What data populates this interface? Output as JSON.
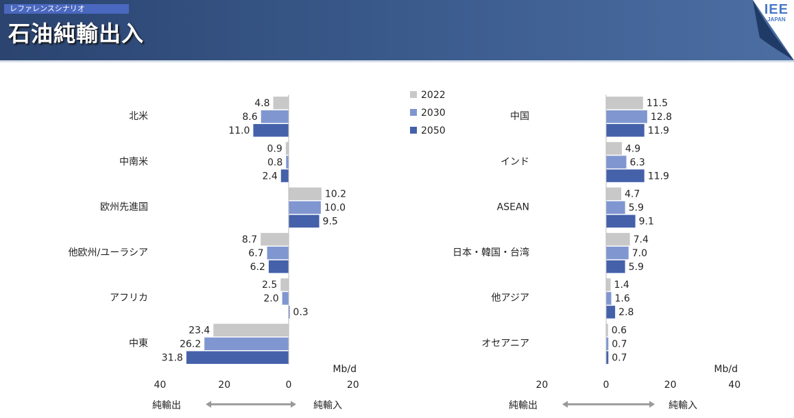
{
  "header": {
    "subtitle": "レファレンスシナリオ",
    "title": "石油純輸出入",
    "logo_text": "IEE",
    "logo_sub": "JAPAN"
  },
  "legend": [
    {
      "label": "2022",
      "color": "#c8c8c8"
    },
    {
      "label": "2030",
      "color": "#7f96d0"
    },
    {
      "label": "2050",
      "color": "#4461aa"
    }
  ],
  "chart_data": [
    {
      "type": "bar",
      "orientation": "horizontal",
      "unit": "Mb/d",
      "xlim": [
        -40,
        20
      ],
      "ticks": [
        {
          "value": -40,
          "label": "40"
        },
        {
          "value": -20,
          "label": "20"
        },
        {
          "value": 0,
          "label": "0"
        },
        {
          "value": 20,
          "label": "20"
        }
      ],
      "direction_labels": {
        "negative": "純輸出",
        "positive": "純輸入"
      },
      "categories": [
        "北米",
        "中南米",
        "欧州先進国",
        "他欧州/ユーラシア",
        "アフリカ",
        "中東"
      ],
      "series": [
        {
          "name": "2022",
          "values": [
            -4.8,
            -0.9,
            10.2,
            -8.7,
            -2.5,
            -23.4
          ]
        },
        {
          "name": "2030",
          "values": [
            -8.6,
            -0.8,
            10.0,
            -6.7,
            -2.0,
            -26.2
          ]
        },
        {
          "name": "2050",
          "values": [
            -11.0,
            -2.4,
            9.5,
            -6.2,
            0.3,
            -31.8
          ]
        }
      ]
    },
    {
      "type": "bar",
      "orientation": "horizontal",
      "unit": "Mb/d",
      "xlim": [
        -20,
        40
      ],
      "ticks": [
        {
          "value": -20,
          "label": "20"
        },
        {
          "value": 0,
          "label": "0"
        },
        {
          "value": 20,
          "label": "20"
        },
        {
          "value": 40,
          "label": "40"
        }
      ],
      "direction_labels": {
        "negative": "純輸出",
        "positive": "純輸入"
      },
      "categories": [
        "中国",
        "インド",
        "ASEAN",
        "日本・韓国・台湾",
        "他アジア",
        "オセアニア"
      ],
      "series": [
        {
          "name": "2022",
          "values": [
            11.5,
            4.9,
            4.7,
            7.4,
            1.4,
            0.6
          ]
        },
        {
          "name": "2030",
          "values": [
            12.8,
            6.3,
            5.9,
            7.0,
            1.6,
            0.7
          ]
        },
        {
          "name": "2050",
          "values": [
            11.9,
            11.9,
            9.1,
            5.9,
            2.8,
            0.7
          ]
        }
      ]
    }
  ]
}
